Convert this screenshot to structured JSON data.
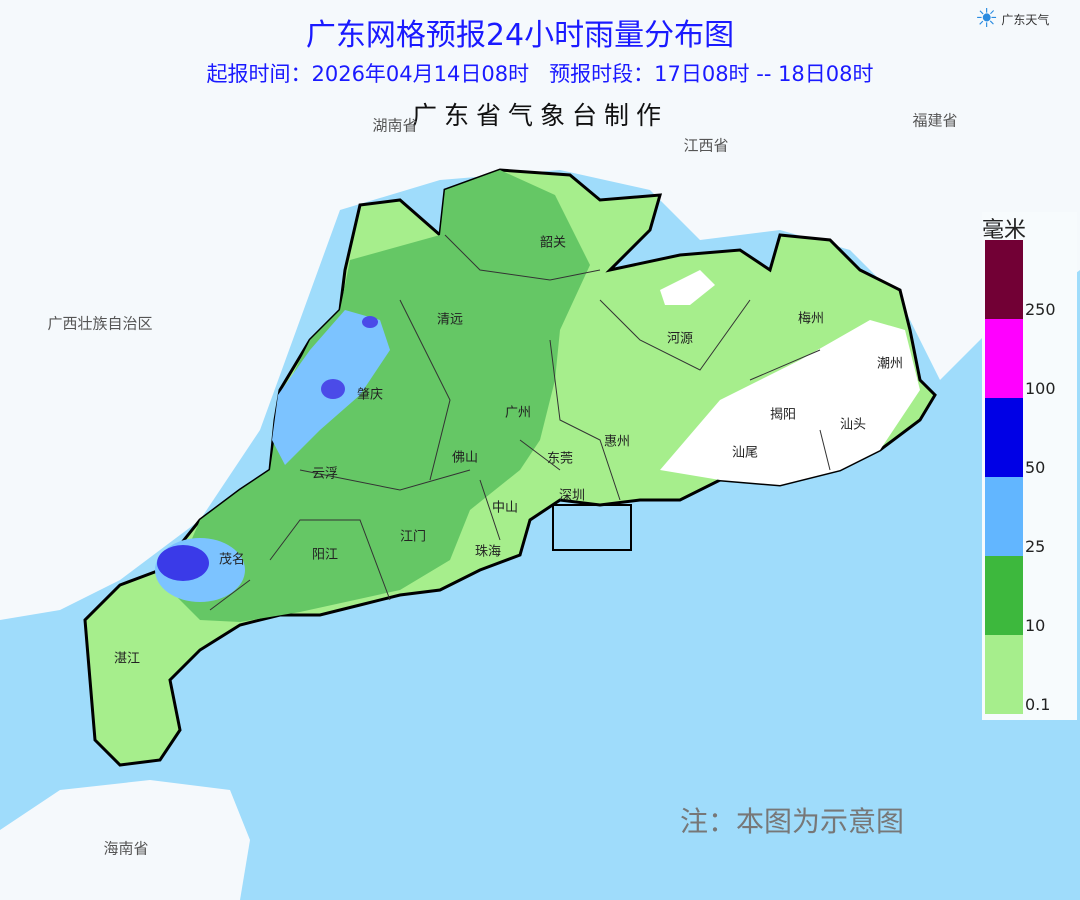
{
  "header": {
    "title": "广东网格预报24小时雨量分布图",
    "subtitle": "起报时间：2026年04月14日08时   预报时段：17日08时 -- 18日08时",
    "maker": "广东省气象台制作",
    "logo_text": "广东天气"
  },
  "provinces": [
    "湖南省",
    "江西省",
    "福建省",
    "广西壮族自治区",
    "海南省"
  ],
  "cities": [
    "韶关",
    "清远",
    "河源",
    "梅州",
    "潮州",
    "肇庆",
    "广州",
    "揭阳",
    "汕头",
    "惠州",
    "汕尾",
    "佛山",
    "东莞",
    "云浮",
    "深圳",
    "中山",
    "江门",
    "珠海",
    "茂名",
    "阳江",
    "湛江"
  ],
  "legend": {
    "unit": "毫米",
    "bins": [
      {
        "label": "250",
        "color": "#720035"
      },
      {
        "label": "100",
        "color": "#ff00ff"
      },
      {
        "label": "50",
        "color": "#0000e6"
      },
      {
        "label": "25",
        "color": "#62b6ff"
      },
      {
        "label": "10",
        "color": "#3db83d"
      },
      {
        "label": "0.1",
        "color": "#a6ee8c"
      }
    ]
  },
  "note": "注：本图为示意图",
  "colors": {
    "sea": "#9fdcfb",
    "land": "#f5f9fc",
    "no_rain": "#ffffff"
  }
}
